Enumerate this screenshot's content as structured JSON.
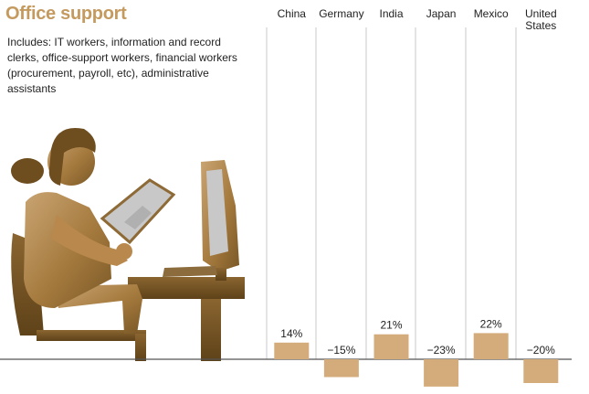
{
  "header": {
    "title": "Office support",
    "description": "Includes: IT workers, information and record clerks, office-support workers, financial workers (procurement, payroll, etc), administrative assistants"
  },
  "colors": {
    "title": "#c49a5f",
    "bar": "#d4ac7c",
    "divider": "#c9c9c9",
    "axis": "#555555"
  },
  "illustration": {
    "icon": "office-worker-at-computer-icon"
  },
  "chart_data": {
    "type": "bar",
    "categories": [
      [
        "China"
      ],
      [
        "Germany"
      ],
      [
        "India"
      ],
      [
        "Japan"
      ],
      [
        "Mexico"
      ],
      [
        "United",
        "States"
      ]
    ],
    "values": [
      14,
      -15,
      21,
      -23,
      22,
      -20
    ],
    "labels": [
      "14%",
      "−15%",
      "21%",
      "−23%",
      "22%",
      "−20%"
    ],
    "grid": false
  }
}
